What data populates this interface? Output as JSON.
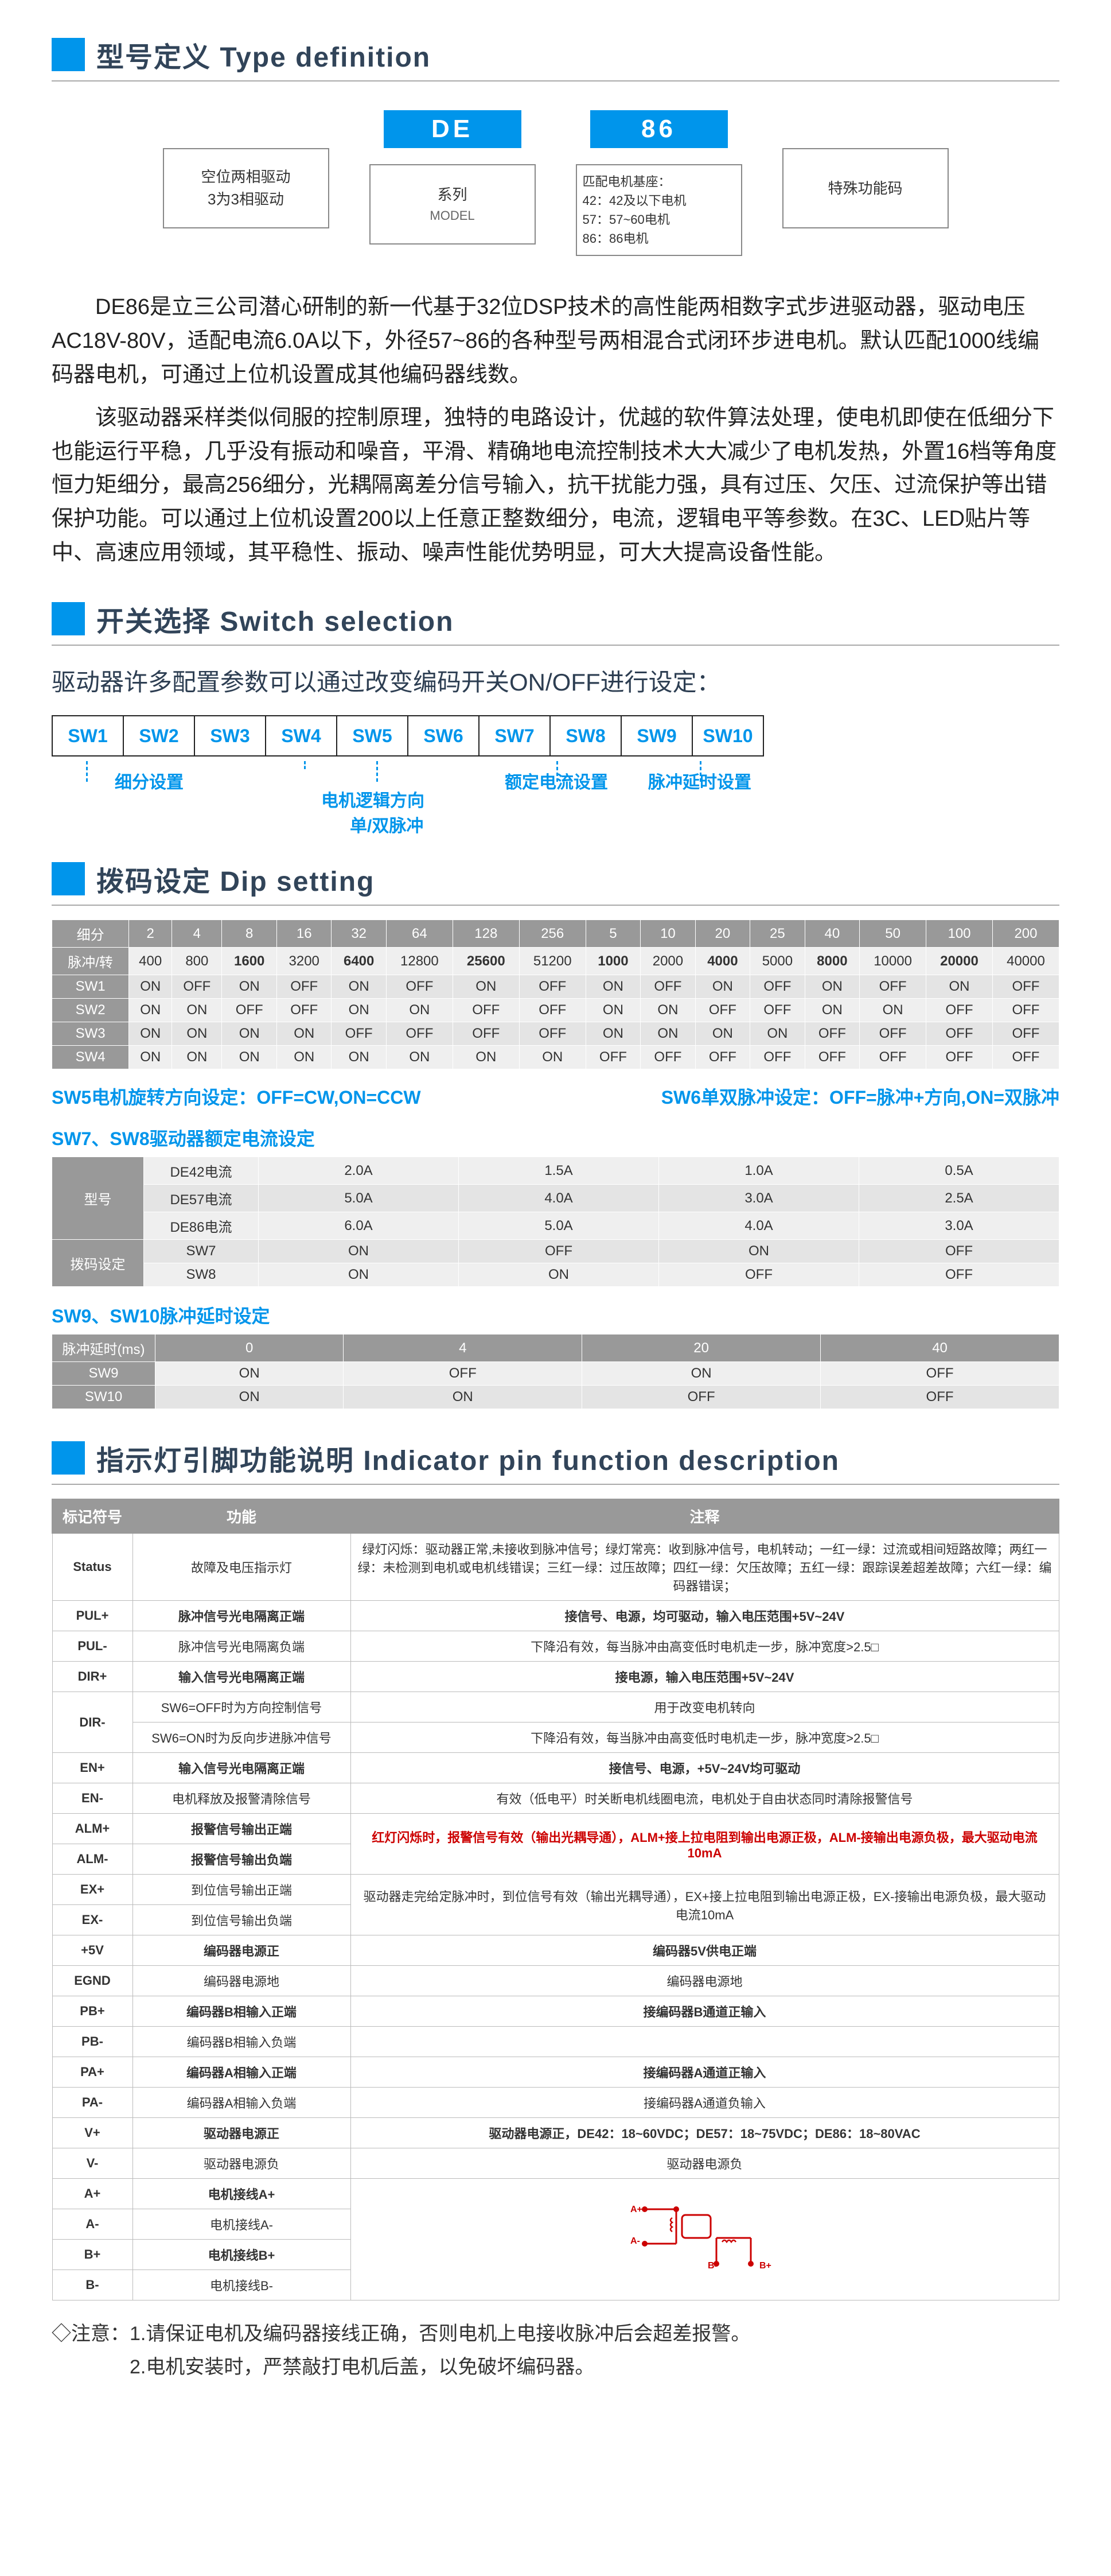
{
  "sec1_title": "型号定义  Type definition",
  "type_def": {
    "tag2": "DE",
    "tag3": "86",
    "box1_l1": "空位两相驱动",
    "box1_l2": "3为3相驱动",
    "box2_l1": "系列",
    "box2_l2": "MODEL",
    "box3_t": "匹配电机基座：",
    "box3_l1": "42：42及以下电机",
    "box3_l2": "57：57~60电机",
    "box3_l3": "86：86电机",
    "box4": "特殊功能码"
  },
  "para1": "DE86是立三公司潜心研制的新一代基于32位DSP技术的高性能两相数字式步进驱动器，驱动电压AC18V-80V，适配电流6.0A以下，外径57~86的各种型号两相混合式闭环步进电机。默认匹配1000线编码器电机，可通过上位机设置成其他编码器线数。",
  "para2": "该驱动器采样类似伺服的控制原理，独特的电路设计，优越的软件算法处理，使电机即使在低细分下也能运行平稳，几乎没有振动和噪音，平滑、精确地电流控制技术大大减少了电机发热，外置16档等角度恒力矩细分，最高256细分，光耦隔离差分信号输入，抗干扰能力强，具有过压、欠压、过流保护等出错保护功能。可以通过上位机设置200以上任意正整数细分，电流，逻辑电平等参数。在3C、LED贴片等中、高速应用领域，其平稳性、振动、噪声性能优势明显，可大大提高设备性能。",
  "sec2_title": "开关选择  Switch selection",
  "sw_line": "驱动器许多配置参数可以通过改变编码开关ON/OFF进行设定：",
  "sw_cells": [
    "SW1",
    "SW2",
    "SW3",
    "SW4",
    "SW5",
    "SW6",
    "SW7",
    "SW8",
    "SW9",
    "SW10"
  ],
  "sw_lbl1": "细分设置",
  "sw_lbl2": "电机逻辑方向",
  "sw_lbl2b": "单/双脉冲",
  "sw_lbl3": "额定电流设置",
  "sw_lbl4": "脉冲延时设置",
  "sec3_title": "拨码设定  Dip setting",
  "dip_hdr": [
    "细分",
    "2",
    "4",
    "8",
    "16",
    "32",
    "64",
    "128",
    "256",
    "5",
    "10",
    "20",
    "25",
    "40",
    "50",
    "100",
    "200"
  ],
  "dip_row_pulse": [
    "脉冲/转",
    "400",
    "800",
    "1600",
    "3200",
    "6400",
    "12800",
    "25600",
    "51200",
    "1000",
    "2000",
    "4000",
    "5000",
    "8000",
    "10000",
    "20000",
    "40000"
  ],
  "dip_sw1": [
    "SW1",
    "ON",
    "OFF",
    "ON",
    "OFF",
    "ON",
    "OFF",
    "ON",
    "OFF",
    "ON",
    "OFF",
    "ON",
    "OFF",
    "ON",
    "OFF",
    "ON",
    "OFF"
  ],
  "dip_sw2": [
    "SW2",
    "ON",
    "ON",
    "OFF",
    "OFF",
    "ON",
    "ON",
    "OFF",
    "OFF",
    "ON",
    "ON",
    "OFF",
    "OFF",
    "ON",
    "ON",
    "OFF",
    "OFF"
  ],
  "dip_sw3": [
    "SW3",
    "ON",
    "ON",
    "ON",
    "ON",
    "OFF",
    "OFF",
    "OFF",
    "OFF",
    "ON",
    "ON",
    "ON",
    "ON",
    "OFF",
    "OFF",
    "OFF",
    "OFF"
  ],
  "dip_sw4": [
    "SW4",
    "ON",
    "ON",
    "ON",
    "ON",
    "ON",
    "ON",
    "ON",
    "ON",
    "OFF",
    "OFF",
    "OFF",
    "OFF",
    "OFF",
    "OFF",
    "OFF",
    "OFF"
  ],
  "sw5_txt": "SW5电机旋转方向设定：OFF=CW,ON=CCW",
  "sw6_txt": "SW6单双脉冲设定：OFF=脉冲+方向,ON=双脉冲",
  "sw78_title": "SW7、SW8驱动器额定电流设定",
  "cur_hdr": [
    "型号",
    "",
    "",
    "",
    "",
    ""
  ],
  "cur_r1": [
    "DE42电流",
    "2.0A",
    "1.5A",
    "1.0A",
    "0.5A"
  ],
  "cur_r2": [
    "DE57电流",
    "5.0A",
    "4.0A",
    "3.0A",
    "2.5A"
  ],
  "cur_r3": [
    "DE86电流",
    "6.0A",
    "5.0A",
    "4.0A",
    "3.0A"
  ],
  "cur_r4": [
    "SW7",
    "ON",
    "OFF",
    "ON",
    "OFF"
  ],
  "cur_r5": [
    "SW8",
    "ON",
    "ON",
    "OFF",
    "OFF"
  ],
  "cur_lbl_model": "型号",
  "cur_lbl_dip": "拨码设定",
  "sw910_title": "SW9、SW10脉冲延时设定",
  "delay_hdr": [
    "脉冲延时(ms)",
    "0",
    "4",
    "20",
    "40"
  ],
  "delay_r1": [
    "SW9",
    "ON",
    "OFF",
    "ON",
    "OFF"
  ],
  "delay_r2": [
    "SW10",
    "ON",
    "ON",
    "OFF",
    "OFF"
  ],
  "sec4_title": "指示灯引脚功能说明  Indicator pin function description",
  "pin_hdr": [
    "标记符号",
    "功能",
    "注释"
  ],
  "pins": [
    {
      "sym": "Status",
      "fn": "故障及电压指示灯",
      "nt": "绿灯闪烁：驱动器正常,未接收到脉冲信号；绿灯常亮：收到脉冲信号，电机转动；一红一绿：过流或相间短路故障；两红一绿：未检测到电机或电机线错误；三红一绿：过压故障；四红一绿：欠压故障；五红一绿：跟踪误差超差故障；六红一绿：编码器错误；",
      "b": 0,
      "r": 0
    },
    {
      "sym": "PUL+",
      "fn": "脉冲信号光电隔离正端",
      "nt": "接信号、电源，均可驱动，输入电压范围+5V~24V",
      "b": 1,
      "r": 0
    },
    {
      "sym": "PUL-",
      "fn": "脉冲信号光电隔离负端",
      "nt": "下降沿有效，每当脉冲由高变低时电机走一步，脉冲宽度>2.5□",
      "b": 0,
      "r": 0
    },
    {
      "sym": "DIR+",
      "fn": "输入信号光电隔离正端",
      "nt": "接电源，输入电压范围+5V~24V",
      "b": 1,
      "r": 0
    },
    {
      "sym": "DIR-",
      "fn": "SW6=OFF时为方向控制信号",
      "nt": "用于改变电机转向",
      "b": 0,
      "r": 0,
      "span": 0
    },
    {
      "sym": "",
      "fn": "SW6=ON时为反向步进脉冲信号",
      "nt": "下降沿有效，每当脉冲由高变低时电机走一步，脉冲宽度>2.5□",
      "b": 0,
      "r": 0
    },
    {
      "sym": "EN+",
      "fn": "输入信号光电隔离正端",
      "nt": "接信号、电源，+5V~24V均可驱动",
      "b": 1,
      "r": 0
    },
    {
      "sym": "EN-",
      "fn": "电机释放及报警清除信号",
      "nt": "有效（低电平）时关断电机线圈电流，电机处于自由状态同时清除报警信号",
      "b": 0,
      "r": 0
    },
    {
      "sym": "ALM+",
      "fn": "报警信号输出正端",
      "nt": "红灯闪烁时，报警信号有效（输出光耦导通），ALM+接上拉电阻到输出电源正极，ALM-接输出电源负极，最大驱动电流10mA",
      "b": 1,
      "r": 1
    },
    {
      "sym": "ALM-",
      "fn": "报警信号输出负端",
      "nt": "",
      "b": 1,
      "r": 0
    },
    {
      "sym": "EX+",
      "fn": "到位信号输出正端",
      "nt": "驱动器走完给定脉冲时，到位信号有效（输出光耦导通），EX+接上拉电阻到输出电源正极，EX-接输出电源负极，最大驱动电流10mA",
      "b": 0,
      "r": 0
    },
    {
      "sym": "EX-",
      "fn": "到位信号输出负端",
      "nt": "",
      "b": 0,
      "r": 0
    },
    {
      "sym": "+5V",
      "fn": "编码器电源正",
      "nt": "编码器5V供电正端",
      "b": 1,
      "r": 0
    },
    {
      "sym": "EGND",
      "fn": "编码器电源地",
      "nt": "编码器电源地",
      "b": 0,
      "r": 0
    },
    {
      "sym": "PB+",
      "fn": "编码器B相输入正端",
      "nt": "接编码器B通道正输入",
      "b": 1,
      "r": 0
    },
    {
      "sym": "PB-",
      "fn": "编码器B相输入负端",
      "nt": "",
      "b": 0,
      "r": 0
    },
    {
      "sym": "PA+",
      "fn": "编码器A相输入正端",
      "nt": "接编码器A通道正输入",
      "b": 1,
      "r": 0
    },
    {
      "sym": "PA-",
      "fn": "编码器A相输入负端",
      "nt": "接编码器A通道负输入",
      "b": 0,
      "r": 0
    },
    {
      "sym": "V+",
      "fn": "驱动器电源正",
      "nt": "驱动器电源正，DE42：18~60VDC；DE57：18~75VDC；DE86：18~80VAC",
      "b": 1,
      "r": 0
    },
    {
      "sym": "V-",
      "fn": "驱动器电源负",
      "nt": "驱动器电源负",
      "b": 0,
      "r": 0
    },
    {
      "sym": "A+",
      "fn": "电机接线A+",
      "nt": "_DIAGRAM_",
      "b": 1,
      "r": 0
    },
    {
      "sym": "A-",
      "fn": "电机接线A-",
      "nt": "",
      "b": 0,
      "r": 0
    },
    {
      "sym": "B+",
      "fn": "电机接线B+",
      "nt": "",
      "b": 1,
      "r": 0
    },
    {
      "sym": "B-",
      "fn": "电机接线B-",
      "nt": "",
      "b": 0,
      "r": 0
    }
  ],
  "note_pre": "◇注意：",
  "note1": "1.请保证电机及编码器接线正确，否则电机上电接收脉冲后会超差报警。",
  "note2": "2.电机安装时，严禁敲打电机后盖，以免破坏编码器。",
  "colors": {
    "accent": "#0095eb",
    "hdr": "#999999",
    "text": "#314459"
  }
}
